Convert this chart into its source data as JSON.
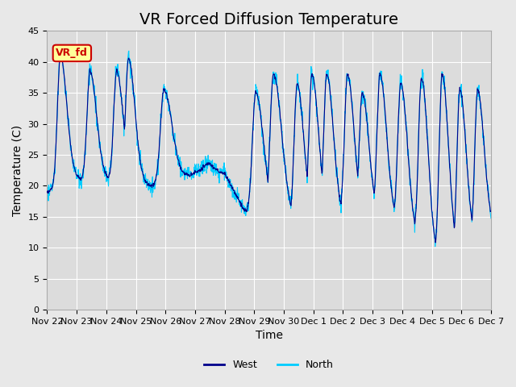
{
  "title": "VR Forced Diffusion Temperature",
  "ylabel": "Temperature (C)",
  "xlabel": "Time",
  "ylim": [
    0,
    45
  ],
  "yticks": [
    0,
    5,
    10,
    15,
    20,
    25,
    30,
    35,
    40,
    45
  ],
  "x_tick_labels": [
    "Nov 22",
    "Nov 23",
    "Nov 24",
    "Nov 25",
    "Nov 26",
    "Nov 27",
    "Nov 28",
    "Nov 29",
    "Nov 30",
    "Dec 1",
    "Dec 2",
    "Dec 3",
    "Dec 4",
    "Dec 5",
    "Dec 6",
    "Dec 7"
  ],
  "west_color": "#00008B",
  "north_color": "#00CCFF",
  "fig_bg_color": "#E8E8E8",
  "ax_bg_color": "#DCDCDC",
  "annotation_text": "VR_fd",
  "annotation_bg": "#FFFF99",
  "annotation_border": "#CC0000",
  "legend_west": "West",
  "legend_north": "North",
  "grid_color": "#FFFFFF",
  "title_fontsize": 14,
  "label_fontsize": 10,
  "tick_fontsize": 8
}
